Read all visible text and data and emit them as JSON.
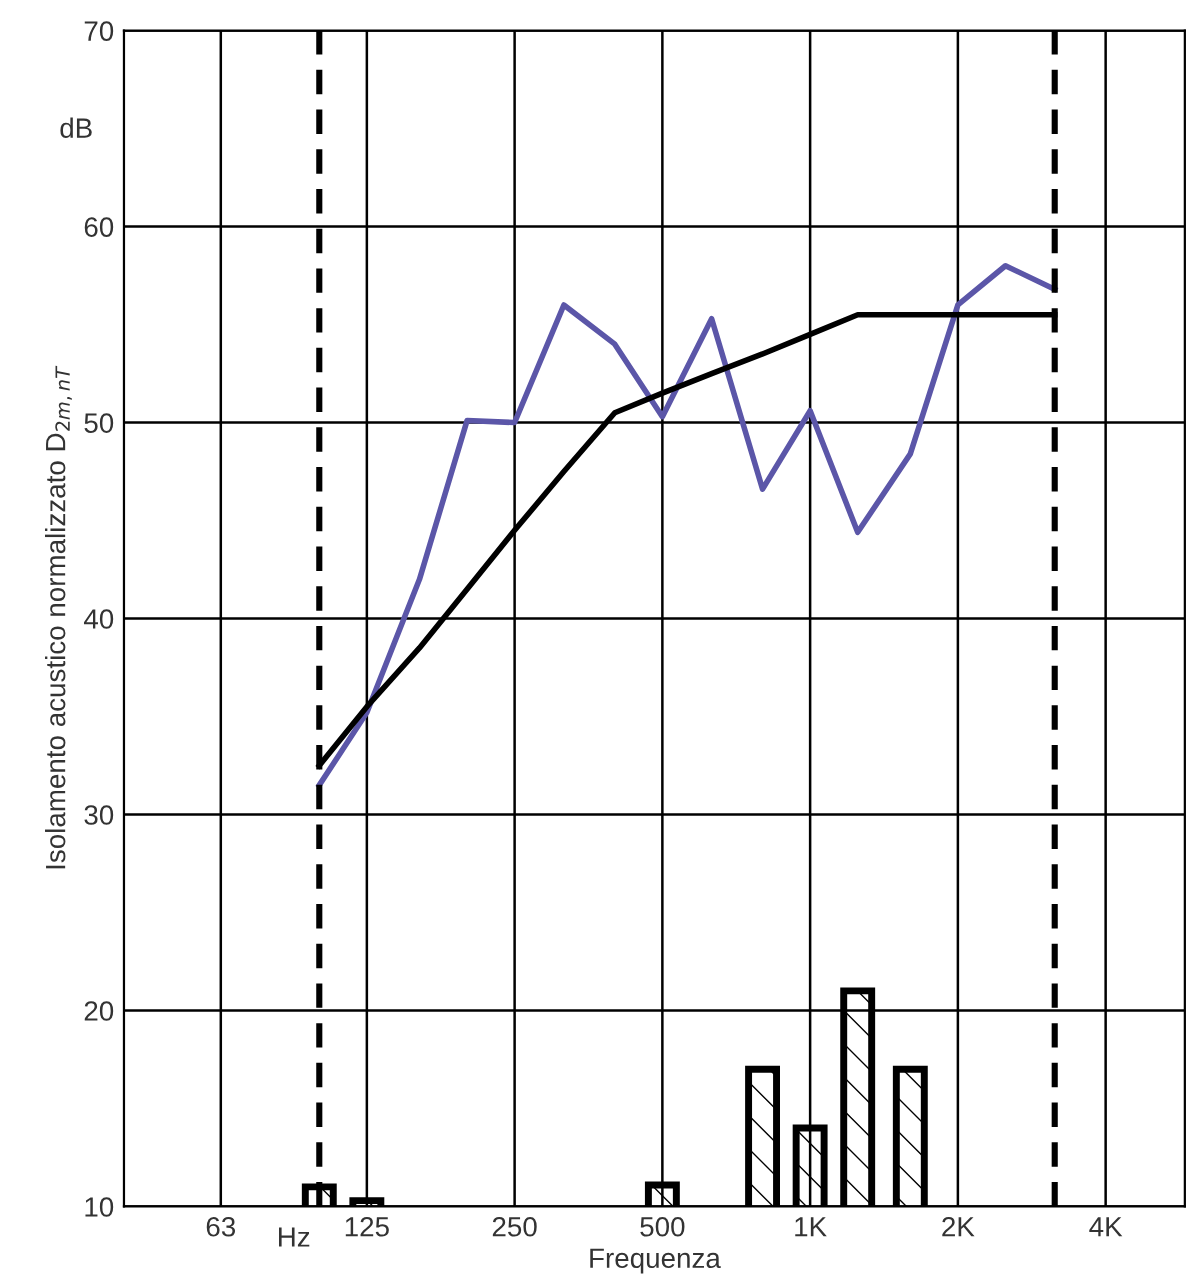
{
  "chart_data": {
    "type": "line",
    "ylabel": "Isolamento acustico normalizzato D$_{2m,nT}$",
    "xlabel": "Frequenza",
    "x": [
      100,
      125,
      160,
      200,
      250,
      315,
      400,
      500,
      630,
      800,
      1000,
      1250,
      1600,
      2000,
      2500,
      3150
    ],
    "series": [
      {
        "color": "#5b56a8",
        "values": [
          31.5,
          35.2,
          42,
          50.1,
          50,
          56,
          54,
          50.3,
          55.3,
          46.6,
          50.6,
          44.4,
          48.4,
          56,
          58,
          56.8
        ]
      },
      {
        "color": "#000000",
        "values": [
          32.5,
          35.5,
          38.5,
          41.5,
          44.5,
          47.5,
          50.5,
          51.5,
          52.5,
          53.5,
          54.5,
          55.5,
          55.5,
          55.5,
          55.5,
          55.5
        ]
      },
      {
        "type": "bar",
        "color": "#000000",
        "x": [
          100,
          125,
          500,
          800,
          1000,
          1250,
          1600
        ],
        "values": [
          11,
          10.3,
          11.1,
          17,
          14,
          21,
          17
        ]
      }
    ],
    "log": "x",
    "xlim": [
      40,
      5800
    ],
    "ylim": [
      10,
      70
    ],
    "xticks": [
      63,
      125,
      250,
      500,
      {
        "value": 1000,
        "label": "1K"
      },
      {
        "value": 2000,
        "label": "2K"
      },
      {
        "value": 4000,
        "label": "4K"
      }
    ],
    "yticks": [
      10,
      20,
      30,
      40,
      50,
      60,
      70
    ],
    "grid": true,
    "ref_lines": [
      {
        "axis": "x",
        "value": 100,
        "color": "#000000",
        "line_style": "dashed"
      },
      {
        "axis": "x",
        "value": 3150,
        "color": "#000000",
        "line_style": "dashed"
      }
    ],
    "annotations": [
      "dB",
      "Hz"
    ]
  }
}
